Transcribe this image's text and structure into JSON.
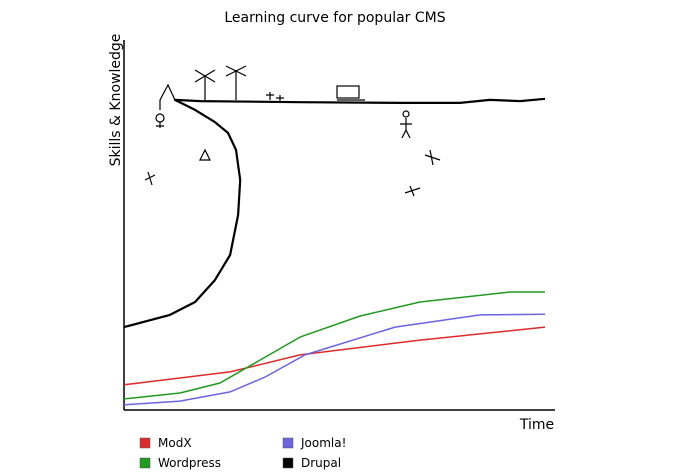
{
  "chart_data": {
    "type": "line",
    "title": "Learning curve for popular CMS",
    "x_label": "Time",
    "y_label": "Skills & Knowledge",
    "xlim": [
      0,
      100
    ],
    "ylim": [
      0,
      100
    ],
    "series": [
      {
        "name": "ModX",
        "color": "#dd2b2b",
        "x": [
          0,
          25.2,
          41.8,
          70.3,
          100
        ],
        "values": [
          6.8,
          10.3,
          14.9,
          18.9,
          22.4
        ]
      },
      {
        "name": "Wordpress",
        "color": "#1f9a1f",
        "x": [
          0,
          13.3,
          22.8,
          32.3,
          41.8,
          56.1,
          70.3,
          91.7,
          100
        ],
        "values": [
          3.0,
          4.6,
          7.3,
          13.5,
          19.7,
          25.4,
          29.2,
          31.9,
          31.9
        ]
      },
      {
        "name": "Joomla!",
        "color": "#6b63e0",
        "x": [
          0,
          13.3,
          25.2,
          33.5,
          43.0,
          64.4,
          84.6,
          100
        ],
        "values": [
          1.4,
          2.4,
          4.9,
          8.9,
          14.9,
          22.4,
          25.7,
          25.9
        ]
      },
      {
        "name": "Drupal",
        "color": "#000000",
        "x": [
          0,
          10.9,
          16.9,
          21.6,
          25.2,
          27.1,
          27.6,
          26.6,
          24.7,
          21.6,
          16.9,
          12.1,
          18.1,
          41.8,
          65.6,
          79.8,
          86.9,
          94.1,
          100
        ],
        "values": [
          22.4,
          25.7,
          29.2,
          35.1,
          41.9,
          52.7,
          62.2,
          70.3,
          74.9,
          77.8,
          81.1,
          83.8,
          83.5,
          83.2,
          83.0,
          83.0,
          83.8,
          83.5,
          84.1
        ]
      }
    ]
  }
}
